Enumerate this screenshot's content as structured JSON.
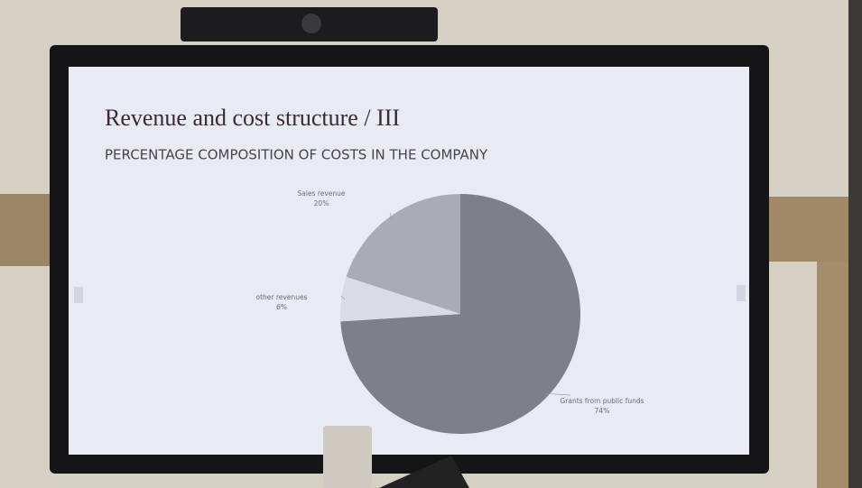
{
  "chart_data": {
    "type": "pie",
    "title": "Revenue and cost structure / III",
    "subtitle": "PERCENTAGE COMPOSITION OF COSTS IN THE COMPANY",
    "categories": [
      "Grants from public funds",
      "other revenues",
      "Sales revenue"
    ],
    "values": [
      74,
      6,
      20
    ],
    "value_labels": [
      "74%",
      "6%",
      "20%"
    ],
    "colors": [
      "#7d7f89",
      "#d9dbe7",
      "#a9abb6"
    ]
  }
}
